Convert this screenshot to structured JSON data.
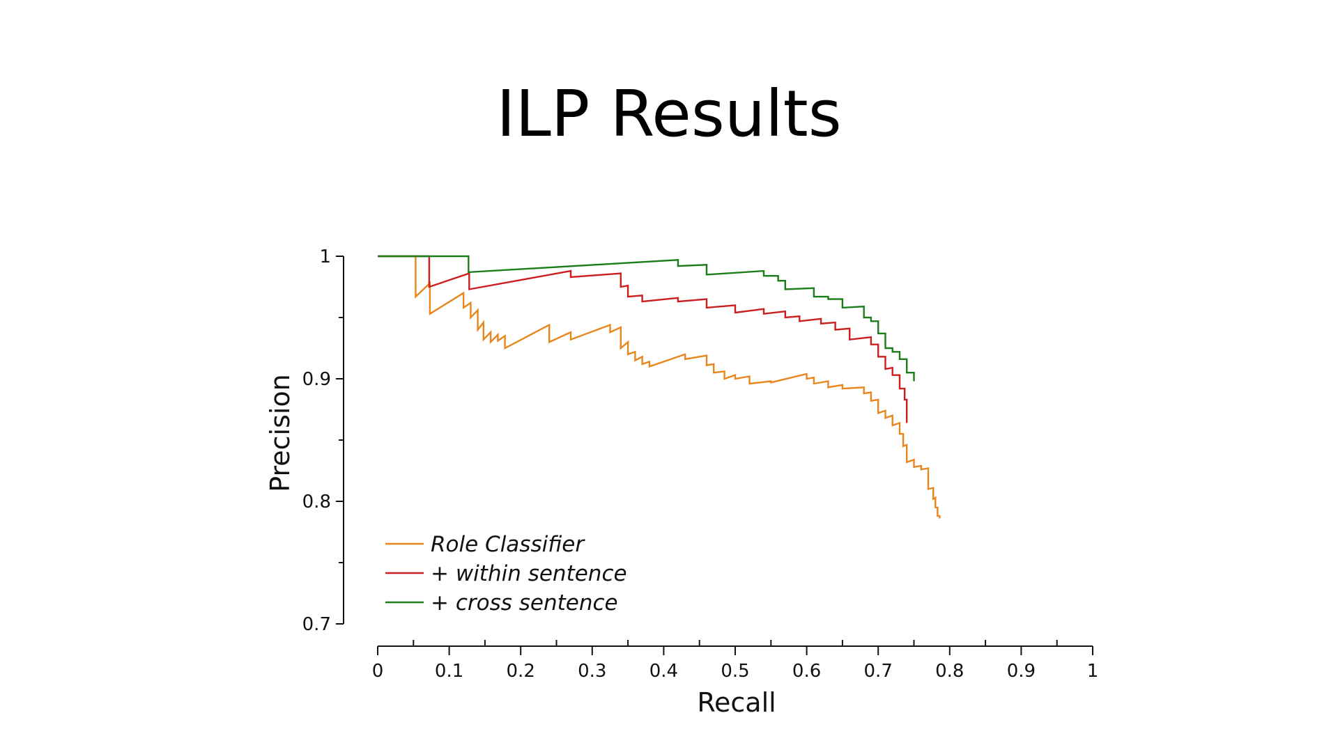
{
  "slide": {
    "title": "ILP Results"
  },
  "chart_data": {
    "type": "line",
    "title": "",
    "xlabel": "Recall",
    "ylabel": "Precision",
    "xlim": [
      0,
      1
    ],
    "ylim": [
      0.7,
      1
    ],
    "x_ticks": [
      "0",
      "0.1",
      "0.2",
      "0.3",
      "0.4",
      "0.5",
      "0.6",
      "0.7",
      "0.8",
      "0.9",
      "1"
    ],
    "y_ticks": [
      "0.7",
      "0.8",
      "0.9",
      "1"
    ],
    "grid": false,
    "legend_position": "bottom-left",
    "series": [
      {
        "name": "Role Classifier",
        "color": "#e8861c",
        "step": true,
        "points": [
          [
            0.0,
            1.0
          ],
          [
            0.053,
            1.0
          ],
          [
            0.053,
            0.967
          ],
          [
            0.073,
            0.978
          ],
          [
            0.073,
            0.953
          ],
          [
            0.12,
            0.97
          ],
          [
            0.12,
            0.958
          ],
          [
            0.13,
            0.962
          ],
          [
            0.13,
            0.95
          ],
          [
            0.14,
            0.956
          ],
          [
            0.14,
            0.94
          ],
          [
            0.148,
            0.946
          ],
          [
            0.148,
            0.932
          ],
          [
            0.158,
            0.938
          ],
          [
            0.158,
            0.93
          ],
          [
            0.168,
            0.936
          ],
          [
            0.168,
            0.931
          ],
          [
            0.178,
            0.935
          ],
          [
            0.178,
            0.925
          ],
          [
            0.24,
            0.944
          ],
          [
            0.24,
            0.93
          ],
          [
            0.27,
            0.938
          ],
          [
            0.27,
            0.932
          ],
          [
            0.325,
            0.944
          ],
          [
            0.325,
            0.938
          ],
          [
            0.34,
            0.942
          ],
          [
            0.34,
            0.925
          ],
          [
            0.35,
            0.93
          ],
          [
            0.35,
            0.92
          ],
          [
            0.36,
            0.922
          ],
          [
            0.36,
            0.915
          ],
          [
            0.37,
            0.918
          ],
          [
            0.37,
            0.912
          ],
          [
            0.38,
            0.914
          ],
          [
            0.38,
            0.91
          ],
          [
            0.43,
            0.92
          ],
          [
            0.43,
            0.916
          ],
          [
            0.46,
            0.919
          ],
          [
            0.46,
            0.911
          ],
          [
            0.47,
            0.912
          ],
          [
            0.47,
            0.905
          ],
          [
            0.485,
            0.906
          ],
          [
            0.485,
            0.9
          ],
          [
            0.5,
            0.903
          ],
          [
            0.5,
            0.9
          ],
          [
            0.52,
            0.902
          ],
          [
            0.52,
            0.896
          ],
          [
            0.55,
            0.898
          ],
          [
            0.55,
            0.897
          ],
          [
            0.6,
            0.904
          ],
          [
            0.6,
            0.9
          ],
          [
            0.61,
            0.901
          ],
          [
            0.61,
            0.896
          ],
          [
            0.63,
            0.898
          ],
          [
            0.63,
            0.893
          ],
          [
            0.65,
            0.895
          ],
          [
            0.65,
            0.892
          ],
          [
            0.68,
            0.893
          ],
          [
            0.68,
            0.888
          ],
          [
            0.69,
            0.889
          ],
          [
            0.69,
            0.882
          ],
          [
            0.7,
            0.883
          ],
          [
            0.7,
            0.872
          ],
          [
            0.71,
            0.874
          ],
          [
            0.71,
            0.868
          ],
          [
            0.72,
            0.87
          ],
          [
            0.72,
            0.862
          ],
          [
            0.73,
            0.864
          ],
          [
            0.73,
            0.855
          ],
          [
            0.735,
            0.855
          ],
          [
            0.735,
            0.845
          ],
          [
            0.74,
            0.846
          ],
          [
            0.74,
            0.832
          ],
          [
            0.75,
            0.834
          ],
          [
            0.75,
            0.828
          ],
          [
            0.76,
            0.829
          ],
          [
            0.76,
            0.826
          ],
          [
            0.77,
            0.827
          ],
          [
            0.77,
            0.81
          ],
          [
            0.777,
            0.811
          ],
          [
            0.777,
            0.802
          ],
          [
            0.78,
            0.803
          ],
          [
            0.78,
            0.795
          ],
          [
            0.783,
            0.795
          ],
          [
            0.783,
            0.788
          ],
          [
            0.786,
            0.788
          ],
          [
            0.786,
            0.786
          ]
        ]
      },
      {
        "name": "+ within sentence",
        "color": "#cc1e1e",
        "step": true,
        "points": [
          [
            0.0,
            1.0
          ],
          [
            0.072,
            1.0
          ],
          [
            0.072,
            0.975
          ],
          [
            0.128,
            0.986
          ],
          [
            0.128,
            0.973
          ],
          [
            0.27,
            0.988
          ],
          [
            0.27,
            0.983
          ],
          [
            0.34,
            0.986
          ],
          [
            0.34,
            0.975
          ],
          [
            0.35,
            0.976
          ],
          [
            0.35,
            0.967
          ],
          [
            0.37,
            0.968
          ],
          [
            0.37,
            0.963
          ],
          [
            0.42,
            0.966
          ],
          [
            0.42,
            0.963
          ],
          [
            0.46,
            0.965
          ],
          [
            0.46,
            0.958
          ],
          [
            0.5,
            0.96
          ],
          [
            0.5,
            0.954
          ],
          [
            0.54,
            0.957
          ],
          [
            0.54,
            0.953
          ],
          [
            0.57,
            0.955
          ],
          [
            0.57,
            0.95
          ],
          [
            0.59,
            0.951
          ],
          [
            0.59,
            0.947
          ],
          [
            0.62,
            0.949
          ],
          [
            0.62,
            0.945
          ],
          [
            0.64,
            0.946
          ],
          [
            0.64,
            0.94
          ],
          [
            0.66,
            0.941
          ],
          [
            0.66,
            0.932
          ],
          [
            0.69,
            0.934
          ],
          [
            0.69,
            0.928
          ],
          [
            0.7,
            0.928
          ],
          [
            0.7,
            0.918
          ],
          [
            0.71,
            0.918
          ],
          [
            0.71,
            0.908
          ],
          [
            0.72,
            0.909
          ],
          [
            0.72,
            0.903
          ],
          [
            0.73,
            0.903
          ],
          [
            0.73,
            0.892
          ],
          [
            0.737,
            0.892
          ],
          [
            0.737,
            0.883
          ],
          [
            0.74,
            0.883
          ],
          [
            0.74,
            0.864
          ]
        ]
      },
      {
        "name": "+ cross sentence",
        "color": "#1a7d1a",
        "step": true,
        "points": [
          [
            0.0,
            1.0
          ],
          [
            0.127,
            1.0
          ],
          [
            0.127,
            0.987
          ],
          [
            0.42,
            0.997
          ],
          [
            0.42,
            0.992
          ],
          [
            0.46,
            0.993
          ],
          [
            0.46,
            0.985
          ],
          [
            0.54,
            0.988
          ],
          [
            0.54,
            0.984
          ],
          [
            0.56,
            0.984
          ],
          [
            0.56,
            0.98
          ],
          [
            0.57,
            0.98
          ],
          [
            0.57,
            0.973
          ],
          [
            0.61,
            0.974
          ],
          [
            0.61,
            0.967
          ],
          [
            0.63,
            0.967
          ],
          [
            0.63,
            0.965
          ],
          [
            0.65,
            0.965
          ],
          [
            0.65,
            0.958
          ],
          [
            0.68,
            0.959
          ],
          [
            0.68,
            0.95
          ],
          [
            0.69,
            0.95
          ],
          [
            0.69,
            0.947
          ],
          [
            0.7,
            0.947
          ],
          [
            0.7,
            0.937
          ],
          [
            0.71,
            0.937
          ],
          [
            0.71,
            0.925
          ],
          [
            0.72,
            0.925
          ],
          [
            0.72,
            0.922
          ],
          [
            0.73,
            0.922
          ],
          [
            0.73,
            0.916
          ],
          [
            0.74,
            0.916
          ],
          [
            0.74,
            0.905
          ],
          [
            0.75,
            0.905
          ],
          [
            0.75,
            0.898
          ]
        ]
      }
    ]
  }
}
